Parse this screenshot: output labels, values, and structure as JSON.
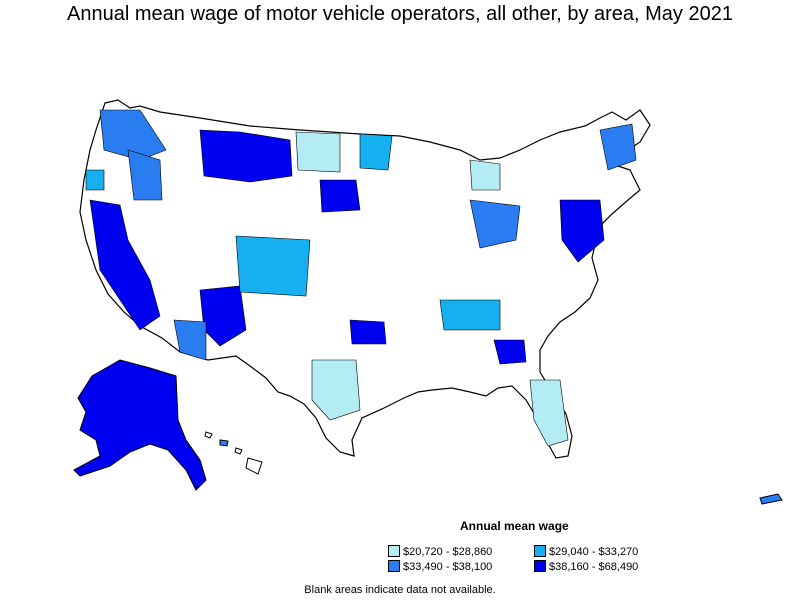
{
  "title": "Annual mean wage of motor vehicle operators, all other, by area, May 2021",
  "legend": {
    "title": "Annual mean wage",
    "items": [
      {
        "label": "$20,720 - $28,860",
        "color": "#b3ecf2"
      },
      {
        "label": "$29,040 - $33,270",
        "color": "#16b0f0"
      },
      {
        "label": "$33,490 - $38,100",
        "color": "#2a7df0"
      },
      {
        "label": "$38,160 - $68,490",
        "color": "#0000f0"
      }
    ]
  },
  "footnote": "Blank areas indicate data not available."
}
